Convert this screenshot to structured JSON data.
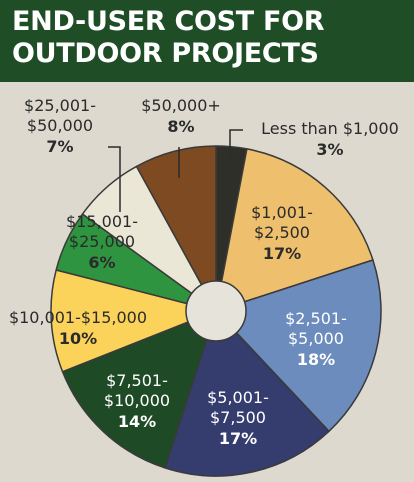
{
  "title_lines": [
    "END-USER COST FOR",
    "OUTDOOR PROJECTS"
  ],
  "chart_data": {
    "type": "pie",
    "title": "END-USER COST FOR OUTDOOR PROJECTS",
    "start_angle_deg": 0,
    "direction": "clockwise",
    "slices": [
      {
        "id": "lt1000",
        "label_lines": [
          "Less than $1,000"
        ],
        "value": 3,
        "value_text": "3%",
        "color": "#2f2f29",
        "label_color": "#2b2b2b"
      },
      {
        "id": "1001_2500",
        "label_lines": [
          "$1,001-",
          "$2,500"
        ],
        "value": 17,
        "value_text": "17%",
        "color": "#eec06d",
        "label_color": "#2b2b2b"
      },
      {
        "id": "2501_5000",
        "label_lines": [
          "$2,501-",
          "$5,000"
        ],
        "value": 18,
        "value_text": "18%",
        "color": "#6b8cbc",
        "label_color": "#ffffff"
      },
      {
        "id": "5001_7500",
        "label_lines": [
          "$5,001-",
          "$7,500"
        ],
        "value": 17,
        "value_text": "17%",
        "color": "#353c6e",
        "label_color": "#ffffff"
      },
      {
        "id": "7501_10000",
        "label_lines": [
          "$7,501-",
          "$10,000"
        ],
        "value": 14,
        "value_text": "14%",
        "color": "#1f4a26",
        "label_color": "#ffffff"
      },
      {
        "id": "10001_15000",
        "label_lines": [
          "$10,001-$15,000"
        ],
        "value": 10,
        "value_text": "10%",
        "color": "#fbd35b",
        "label_color": "#2b2b2b"
      },
      {
        "id": "15001_25000",
        "label_lines": [
          "$15,001-",
          "$25,000"
        ],
        "value": 6,
        "value_text": "6%",
        "color": "#2f9440",
        "label_color": "#2b2b2b"
      },
      {
        "id": "25001_50000",
        "label_lines": [
          "$25,001-",
          "$50,000"
        ],
        "value": 7,
        "value_text": "7%",
        "color": "#ebe7d6",
        "label_color": "#2b2b2b"
      },
      {
        "id": "50000plus",
        "label_lines": [
          "$50,000+"
        ],
        "value": 8,
        "value_text": "8%",
        "color": "#7d4a22",
        "label_color": "#2b2b2b"
      }
    ],
    "legend": "none",
    "grid": false
  }
}
